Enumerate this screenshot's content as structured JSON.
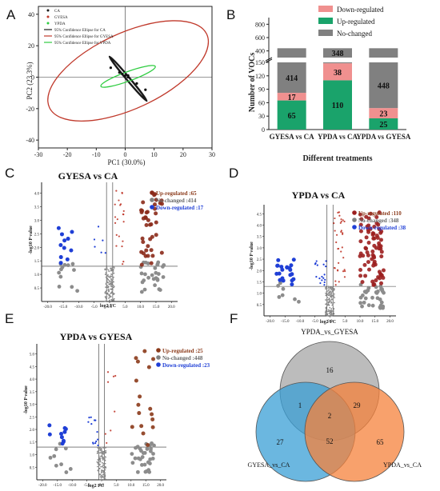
{
  "panels": {
    "A": "A",
    "B": "B",
    "C": "C",
    "D": "D",
    "E": "E",
    "F": "F"
  },
  "chart_data": [
    {
      "panel": "A",
      "type": "scatter",
      "xlabel": "PC1 (30.0%)",
      "ylabel": "PC2 (23.3%)",
      "xlim": [
        -30,
        30
      ],
      "ylim": [
        -45,
        45
      ],
      "xticks": [
        -30,
        -20,
        -10,
        0,
        10,
        20,
        30
      ],
      "yticks": [
        -40,
        -20,
        0,
        20,
        40
      ],
      "legend": [
        "CA",
        "GYESA",
        "YPDA",
        "95% Confidence Ellipse for CA",
        "95% Confidence Ellipse for GYESA",
        "95% Confidence Ellipse for YPDA"
      ],
      "colors": {
        "CA": "#1a1a1a",
        "GYESA": "#c0392b",
        "YPDA": "#2ecc40"
      },
      "points": [
        {
          "x": -5,
          "y": 6
        },
        {
          "x": -2,
          "y": 3
        },
        {
          "x": 1,
          "y": 0
        },
        {
          "x": 4,
          "y": -4
        },
        {
          "x": 7,
          "y": -8
        },
        {
          "x": -1,
          "y": 2
        },
        {
          "x": 0,
          "y": 1
        },
        {
          "x": 1,
          "y": 1
        }
      ],
      "ellipses": [
        {
          "series": "GYESA",
          "cx": 1,
          "cy": 4,
          "rx": 30,
          "ry": 24,
          "angle": 25
        },
        {
          "series": "CA",
          "cx": 1,
          "cy": -1,
          "rx": 10,
          "ry": 1,
          "angle": 50
        },
        {
          "series": "YPDA",
          "cx": 1,
          "cy": 0.5,
          "rx": 10,
          "ry": 3,
          "angle": 20
        }
      ],
      "grid": false
    },
    {
      "panel": "B",
      "type": "bar",
      "stacked": true,
      "categories": [
        "GYESA vs CA",
        "YPDA vs CA",
        "YPDA vs GYESA"
      ],
      "xlabel": "Different treatments",
      "ylabel": "Number of VOCs",
      "lower_ticks": [
        0,
        30,
        60,
        90,
        120,
        150
      ],
      "upper_ticks": [
        400,
        600,
        800
      ],
      "series": [
        {
          "name": "Up-regulated",
          "values": [
            65,
            110,
            25
          ],
          "color": "#1aa36b"
        },
        {
          "name": "Down-regulated",
          "values": [
            17,
            38,
            23
          ],
          "color": "#f0908f"
        },
        {
          "name": "No-changed",
          "values": [
            414,
            348,
            448
          ],
          "color": "#808080"
        }
      ],
      "legend_position": "top-right"
    },
    {
      "panel": "C",
      "type": "scatter",
      "title": "GYESA vs CA",
      "xlabel": "log2 FC",
      "ylabel": "-log10 P value",
      "xlim": [
        -22,
        22
      ],
      "ylim": [
        0,
        4.4
      ],
      "xticks": [
        -20,
        -15,
        -10,
        -5,
        0,
        5,
        10,
        15,
        20
      ],
      "yticks": [
        0.5,
        1.0,
        1.5,
        2.0,
        2.5,
        3.0,
        3.5,
        4.0
      ],
      "legend": [
        "Up-regulated :65",
        "No-changed :414",
        "Down-regulated :17"
      ]
    },
    {
      "panel": "D",
      "type": "scatter",
      "title": "YPDA vs CA",
      "xlabel": "log2 FC",
      "ylabel": "-log10 P value",
      "xlim": [
        -22,
        22
      ],
      "ylim": [
        0,
        4.9
      ],
      "xticks": [
        -20,
        -15,
        -10,
        -5,
        0,
        5,
        10,
        15,
        20
      ],
      "yticks": [
        0.5,
        1.0,
        1.5,
        2.0,
        2.5,
        3.0,
        3.5,
        4.0,
        4.5
      ],
      "legend": [
        "Up-regulated :110",
        "No-changed :348",
        "Down-regulated :38"
      ]
    },
    {
      "panel": "E",
      "type": "scatter",
      "title": "YPDA vs GYESA",
      "xlabel": "log2 FC",
      "ylabel": "-log10 P value",
      "xlim": [
        -22,
        22
      ],
      "ylim": [
        0,
        5.4
      ],
      "xticks": [
        -20,
        -15,
        -10,
        -5,
        0,
        5,
        10,
        15,
        20
      ],
      "yticks": [
        0.5,
        1.0,
        1.5,
        2.0,
        2.5,
        3.0,
        3.5,
        4.0,
        4.5,
        5.0
      ],
      "legend": [
        "Up-regulated :25",
        "No-changed :448",
        "Down-regulated :23"
      ]
    },
    {
      "panel": "F",
      "type": "venn",
      "sets": [
        "YPDA_vs_GYESA",
        "GYESA_vs_CA",
        "YPDA_vs_CA"
      ],
      "colors": {
        "YPDA_vs_GYESA": "#a6a6a6",
        "GYESA_vs_CA": "#3a9fd6",
        "YPDA_vs_CA": "#f5813b"
      },
      "regions": {
        "only_top": 16,
        "only_left": 27,
        "only_right": 65,
        "top_left": 1,
        "top_right": 29,
        "left_right": 52,
        "all": 2
      }
    }
  ]
}
